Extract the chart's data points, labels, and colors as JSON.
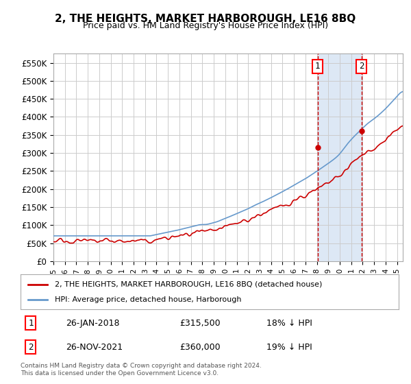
{
  "title": "2, THE HEIGHTS, MARKET HARBOROUGH, LE16 8BQ",
  "subtitle": "Price paid vs. HM Land Registry's House Price Index (HPI)",
  "ylabel_ticks": [
    "£0",
    "£50K",
    "£100K",
    "£150K",
    "£200K",
    "£250K",
    "£300K",
    "£350K",
    "£400K",
    "£450K",
    "£500K",
    "£550K"
  ],
  "ytick_values": [
    0,
    50000,
    100000,
    150000,
    200000,
    250000,
    300000,
    350000,
    400000,
    450000,
    500000,
    550000
  ],
  "ylim": [
    0,
    575000
  ],
  "xlim_start": 1995.0,
  "xlim_end": 2025.5,
  "sale1_date": 2018.07,
  "sale1_price": 315500,
  "sale1_label": "1",
  "sale2_date": 2021.91,
  "sale2_price": 360000,
  "sale2_label": "2",
  "hpi_color": "#6699cc",
  "price_color": "#cc0000",
  "sale_vline_color": "#cc0000",
  "sale_marker_color": "#cc0000",
  "highlight_color": "#dde8f5",
  "grid_color": "#cccccc",
  "legend_label_price": "2, THE HEIGHTS, MARKET HARBOROUGH, LE16 8BQ (detached house)",
  "legend_label_hpi": "HPI: Average price, detached house, Harborough",
  "annotation1": [
    "1",
    "26-JAN-2018",
    "£315,500",
    "18% ↓ HPI"
  ],
  "annotation2": [
    "2",
    "26-NOV-2021",
    "£360,000",
    "19% ↓ HPI"
  ],
  "footer": "Contains HM Land Registry data © Crown copyright and database right 2024.\nThis data is licensed under the Open Government Licence v3.0.",
  "background_color": "#ffffff"
}
